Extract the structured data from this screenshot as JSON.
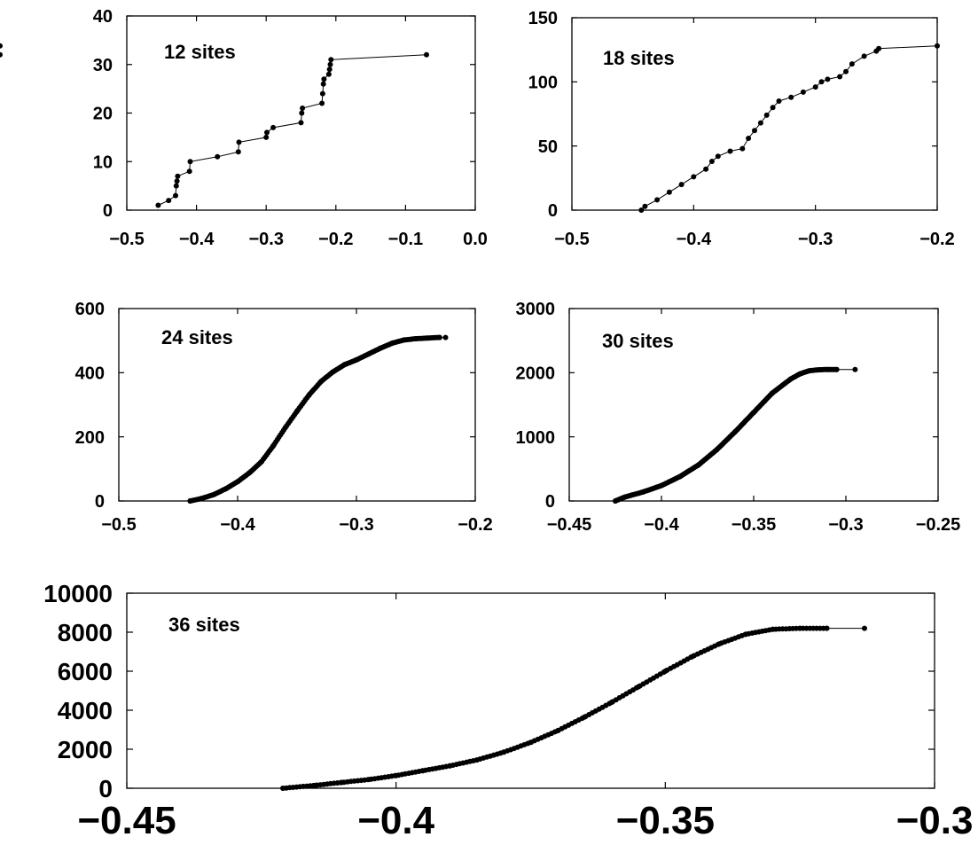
{
  "chart_data": [
    {
      "type": "line",
      "title": "",
      "xlabel": "",
      "ylabel": "",
      "annotation": "12 sites",
      "xlim": [
        -0.5,
        0.0
      ],
      "ylim": [
        0,
        40
      ],
      "x_ticks": [
        "−0.5",
        "−0.4",
        "−0.3",
        "−0.2",
        "−0.1",
        "0.0"
      ],
      "y_ticks": [
        "0",
        "10",
        "20",
        "30",
        "40"
      ],
      "series": [
        {
          "x": [
            -0.455,
            -0.44,
            -0.43,
            -0.429,
            -0.428,
            -0.427,
            -0.41,
            -0.409,
            -0.37,
            -0.34,
            -0.339,
            -0.3,
            -0.299,
            -0.29,
            -0.25,
            -0.249,
            -0.248,
            -0.22,
            -0.219,
            -0.218,
            -0.217,
            -0.21,
            -0.209,
            -0.208,
            -0.207,
            -0.07
          ],
          "y": [
            1,
            2,
            3,
            5,
            6,
            7,
            8,
            10,
            11,
            12,
            14,
            15,
            16,
            17,
            18,
            20,
            21,
            22,
            24,
            26,
            27,
            28,
            29,
            30,
            31,
            32
          ]
        }
      ]
    },
    {
      "type": "line",
      "title": "",
      "xlabel": "",
      "ylabel": "",
      "annotation": "18 sites",
      "xlim": [
        -0.5,
        -0.2
      ],
      "ylim": [
        0,
        150
      ],
      "x_ticks": [
        "−0.5",
        "−0.4",
        "−0.3",
        "−0.2"
      ],
      "y_ticks": [
        "0",
        "50",
        "100",
        "150"
      ],
      "series": [
        {
          "x": [
            -0.443,
            -0.44,
            -0.43,
            -0.42,
            -0.41,
            -0.4,
            -0.39,
            -0.385,
            -0.38,
            -0.37,
            -0.36,
            -0.355,
            -0.35,
            -0.345,
            -0.34,
            -0.335,
            -0.33,
            -0.32,
            -0.31,
            -0.3,
            -0.295,
            -0.29,
            -0.28,
            -0.275,
            -0.27,
            -0.26,
            -0.25,
            -0.248,
            -0.2
          ],
          "y": [
            0,
            3,
            8,
            14,
            20,
            26,
            32,
            38,
            42,
            46,
            48,
            56,
            62,
            68,
            74,
            80,
            85,
            88,
            92,
            96,
            100,
            102,
            104,
            108,
            114,
            120,
            124,
            126,
            128
          ]
        }
      ]
    },
    {
      "type": "line",
      "title": "",
      "xlabel": "",
      "ylabel": "",
      "annotation": "24 sites",
      "xlim": [
        -0.5,
        -0.2
      ],
      "ylim": [
        0,
        600
      ],
      "x_ticks": [
        "−0.5",
        "−0.4",
        "−0.3",
        "−0.2"
      ],
      "y_ticks": [
        "0",
        "200",
        "400",
        "600"
      ],
      "series": [
        {
          "x": [
            -0.44,
            -0.43,
            -0.42,
            -0.41,
            -0.4,
            -0.39,
            -0.38,
            -0.37,
            -0.36,
            -0.35,
            -0.34,
            -0.33,
            -0.32,
            -0.31,
            -0.3,
            -0.29,
            -0.28,
            -0.27,
            -0.26,
            -0.25,
            -0.24,
            -0.23,
            -0.225
          ],
          "y": [
            0,
            8,
            20,
            38,
            60,
            88,
            122,
            172,
            228,
            280,
            330,
            372,
            402,
            425,
            440,
            458,
            476,
            492,
            502,
            506,
            508,
            510,
            510
          ]
        }
      ]
    },
    {
      "type": "line",
      "title": "",
      "xlabel": "",
      "ylabel": "",
      "annotation": "30 sites",
      "xlim": [
        -0.45,
        -0.25
      ],
      "ylim": [
        0,
        3000
      ],
      "x_ticks": [
        "−0.45",
        "−0.4",
        "−0.35",
        "−0.3",
        "−0.25"
      ],
      "y_ticks": [
        "0",
        "1000",
        "2000",
        "3000"
      ],
      "series": [
        {
          "x": [
            -0.425,
            -0.42,
            -0.41,
            -0.4,
            -0.39,
            -0.38,
            -0.37,
            -0.36,
            -0.35,
            -0.34,
            -0.33,
            -0.325,
            -0.32,
            -0.315,
            -0.31,
            -0.305,
            -0.295
          ],
          "y": [
            0,
            60,
            140,
            240,
            380,
            560,
            800,
            1080,
            1380,
            1680,
            1900,
            1980,
            2030,
            2045,
            2050,
            2050,
            2050
          ]
        }
      ]
    },
    {
      "type": "line",
      "title": "",
      "xlabel": "",
      "ylabel": "",
      "annotation": "36 sites",
      "xlim": [
        -0.45,
        -0.3
      ],
      "ylim": [
        0,
        10000
      ],
      "x_ticks": [
        "−0.45",
        "−0.4",
        "−0.35",
        "−0.3"
      ],
      "y_ticks": [
        "0",
        "2000",
        "4000",
        "6000",
        "8000",
        "10000"
      ],
      "series": [
        {
          "x": [
            -0.421,
            -0.415,
            -0.41,
            -0.405,
            -0.4,
            -0.395,
            -0.39,
            -0.385,
            -0.38,
            -0.375,
            -0.37,
            -0.365,
            -0.36,
            -0.355,
            -0.35,
            -0.345,
            -0.34,
            -0.335,
            -0.33,
            -0.325,
            -0.32,
            -0.313
          ],
          "y": [
            0,
            150,
            300,
            450,
            650,
            900,
            1150,
            1450,
            1850,
            2350,
            2950,
            3650,
            4400,
            5200,
            6000,
            6750,
            7400,
            7900,
            8150,
            8200,
            8200,
            8200
          ]
        }
      ]
    }
  ]
}
